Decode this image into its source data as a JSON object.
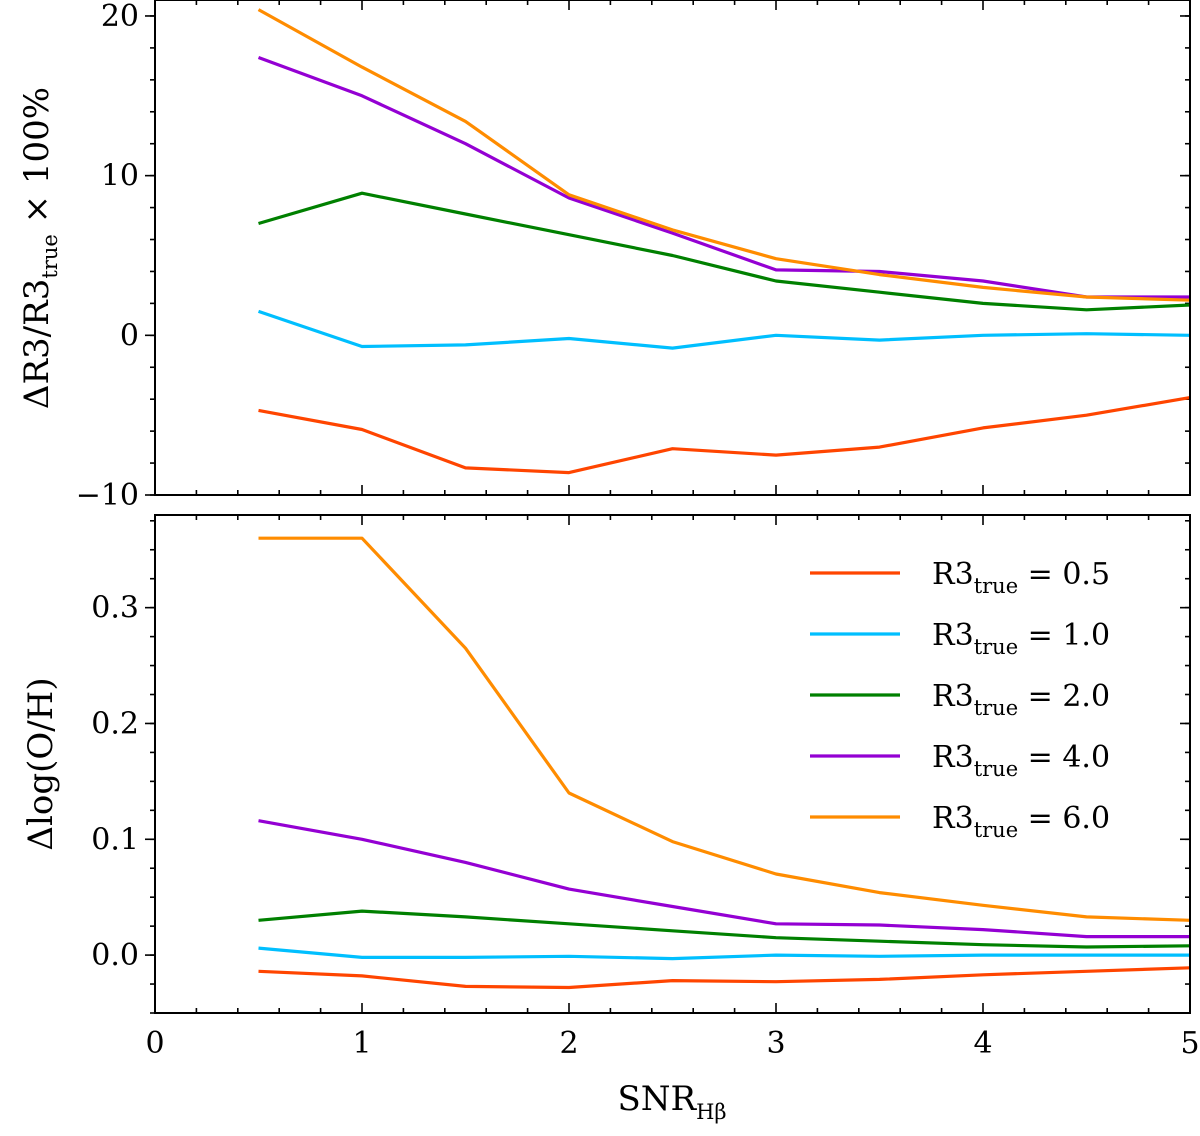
{
  "chart_data": [
    {
      "type": "line",
      "panel": "top",
      "ylabel": {
        "main": "ΔR3/R3",
        "sub": "true",
        "suffix": " × 100%"
      },
      "xlim": [
        0,
        5
      ],
      "ylim": [
        -10,
        21
      ],
      "yticks": [
        -10,
        0,
        10,
        20
      ],
      "ytick_labels": [
        "−10",
        "0",
        "10",
        "20"
      ],
      "x": [
        0.5,
        1.0,
        1.5,
        2.0,
        2.5,
        3.0,
        3.5,
        4.0,
        4.5,
        5.0
      ],
      "series": [
        {
          "name": "0.5",
          "color": "#ff4500",
          "values": [
            -4.7,
            -5.9,
            -8.3,
            -8.6,
            -7.1,
            -7.5,
            -7.0,
            -5.8,
            -5.0,
            -3.9
          ]
        },
        {
          "name": "1.0",
          "color": "#00bfff",
          "values": [
            1.5,
            -0.7,
            -0.6,
            -0.2,
            -0.8,
            0.0,
            -0.3,
            0.0,
            0.1,
            0.0
          ]
        },
        {
          "name": "2.0",
          "color": "#008000",
          "values": [
            7.0,
            8.9,
            7.6,
            6.3,
            5.0,
            3.4,
            2.7,
            2.0,
            1.6,
            1.9
          ]
        },
        {
          "name": "4.0",
          "color": "#9400d3",
          "values": [
            17.4,
            15.0,
            12.0,
            8.6,
            6.4,
            4.1,
            4.0,
            3.4,
            2.4,
            2.4
          ]
        },
        {
          "name": "6.0",
          "color": "#ff8c00",
          "values": [
            20.4,
            16.8,
            13.4,
            8.8,
            6.6,
            4.8,
            3.8,
            3.0,
            2.4,
            2.2
          ]
        }
      ]
    },
    {
      "type": "line",
      "panel": "bottom",
      "ylabel": {
        "main": "Δlog(O/H)"
      },
      "xlabel": {
        "main": "SNR",
        "sub": "Hβ"
      },
      "xlim": [
        0,
        5
      ],
      "ylim": [
        -0.05,
        0.38
      ],
      "yticks": [
        0.0,
        0.1,
        0.2,
        0.3
      ],
      "ytick_labels": [
        "0.0",
        "0.1",
        "0.2",
        "0.3"
      ],
      "xticks": [
        0,
        1,
        2,
        3,
        4,
        5
      ],
      "xtick_labels": [
        "0",
        "1",
        "2",
        "3",
        "4",
        "5"
      ],
      "legend": "top-right",
      "x": [
        0.5,
        1.0,
        1.5,
        2.0,
        2.5,
        3.0,
        3.5,
        4.0,
        4.5,
        5.0
      ],
      "series": [
        {
          "name": "0.5",
          "color": "#ff4500",
          "values": [
            -0.014,
            -0.018,
            -0.027,
            -0.028,
            -0.022,
            -0.023,
            -0.021,
            -0.017,
            -0.014,
            -0.011
          ]
        },
        {
          "name": "1.0",
          "color": "#00bfff",
          "values": [
            0.006,
            -0.002,
            -0.002,
            -0.001,
            -0.003,
            0.0,
            -0.001,
            0.0,
            0.0,
            0.0
          ]
        },
        {
          "name": "2.0",
          "color": "#008000",
          "values": [
            0.03,
            0.038,
            0.033,
            0.027,
            0.021,
            0.015,
            0.012,
            0.009,
            0.007,
            0.008
          ]
        },
        {
          "name": "4.0",
          "color": "#9400d3",
          "values": [
            0.116,
            0.1,
            0.08,
            0.057,
            0.042,
            0.027,
            0.026,
            0.022,
            0.016,
            0.016
          ]
        },
        {
          "name": "6.0",
          "color": "#ff8c00",
          "values": [
            0.36,
            0.36,
            0.265,
            0.14,
            0.098,
            0.07,
            0.054,
            0.043,
            0.033,
            0.03
          ]
        }
      ]
    }
  ],
  "legend": {
    "label_main": "R3",
    "label_sub": "true",
    "label_eq": " = "
  }
}
